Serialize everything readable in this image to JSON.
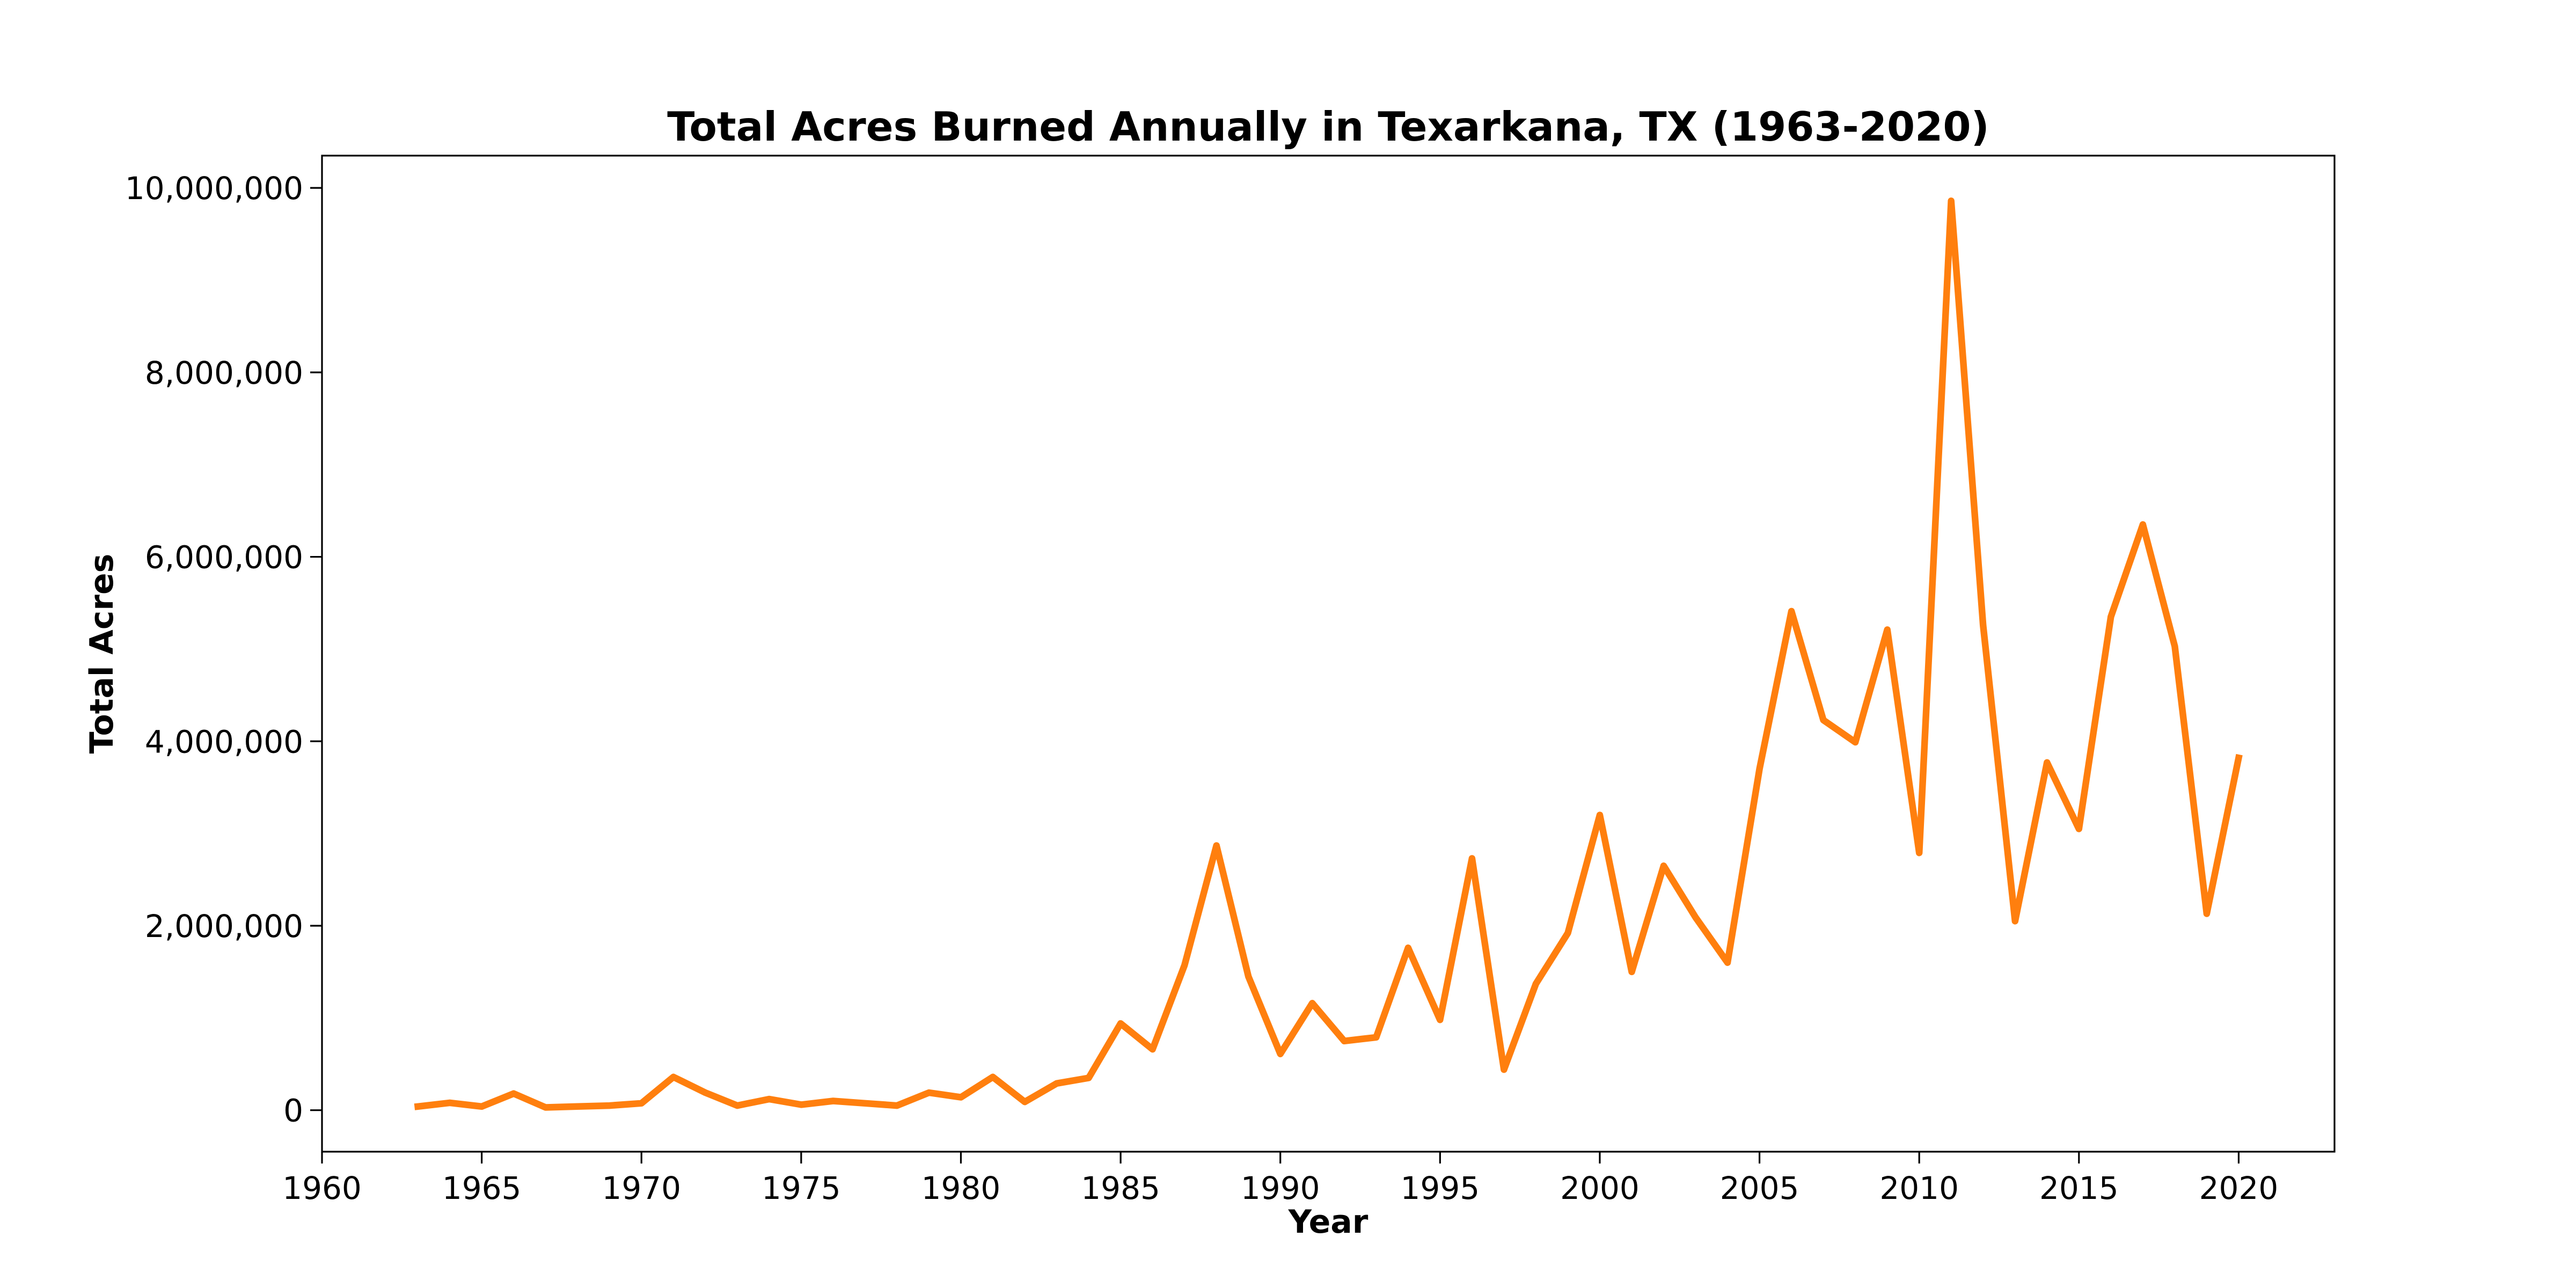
{
  "chart_data": {
    "type": "line",
    "title": "Total Acres Burned Annually in Texarkana, TX (1963-2020)",
    "xlabel": "Year",
    "ylabel": "Total Acres",
    "xlim": [
      1960,
      2023
    ],
    "ylim": [
      -450000,
      10350000
    ],
    "x_ticks": [
      1960,
      1965,
      1970,
      1975,
      1980,
      1985,
      1990,
      1995,
      2000,
      2005,
      2010,
      2015,
      2020
    ],
    "x_tick_labels": [
      "1960",
      "1965",
      "1970",
      "1975",
      "1980",
      "1985",
      "1990",
      "1995",
      "2000",
      "2005",
      "2010",
      "2015",
      "2020"
    ],
    "y_ticks": [
      0,
      2000000,
      4000000,
      6000000,
      8000000,
      10000000
    ],
    "y_tick_labels": [
      "0",
      "2,000,000",
      "4,000,000",
      "6,000,000",
      "8,000,000",
      "10,000,000"
    ],
    "grid": false,
    "legend": "none",
    "color": "#ff7f0e",
    "x": [
      1963,
      1964,
      1965,
      1966,
      1967,
      1968,
      1969,
      1970,
      1971,
      1972,
      1973,
      1974,
      1975,
      1976,
      1977,
      1978,
      1979,
      1980,
      1981,
      1982,
      1983,
      1984,
      1985,
      1986,
      1987,
      1988,
      1989,
      1990,
      1991,
      1992,
      1993,
      1994,
      1995,
      1996,
      1997,
      1998,
      1999,
      2000,
      2001,
      2002,
      2003,
      2004,
      2005,
      2006,
      2007,
      2008,
      2009,
      2010,
      2011,
      2012,
      2013,
      2014,
      2015,
      2016,
      2017,
      2018,
      2019,
      2020
    ],
    "values": [
      40000,
      80000,
      40000,
      180000,
      30000,
      40000,
      50000,
      75000,
      360000,
      190000,
      50000,
      120000,
      60000,
      100000,
      75000,
      50000,
      190000,
      140000,
      360000,
      90000,
      290000,
      350000,
      940000,
      660000,
      1570000,
      2870000,
      1450000,
      610000,
      1160000,
      750000,
      790000,
      1760000,
      980000,
      2730000,
      440000,
      1370000,
      1920000,
      3200000,
      1500000,
      2650000,
      2090000,
      1600000,
      3700000,
      5410000,
      4230000,
      3990000,
      5210000,
      2790000,
      9860000,
      5260000,
      2050000,
      3770000,
      3050000,
      5350000,
      6350000,
      5030000,
      2130000,
      3820000
    ]
  }
}
